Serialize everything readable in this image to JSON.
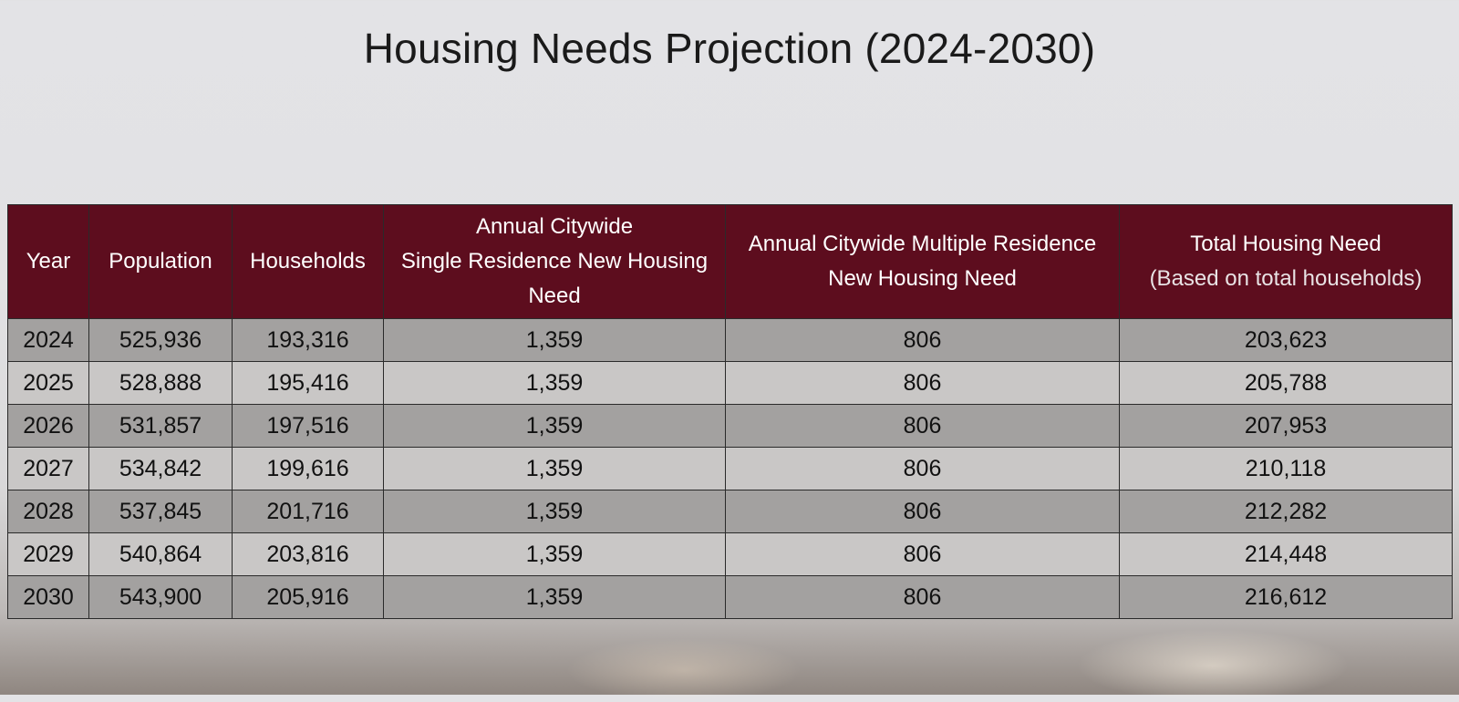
{
  "title": "Housing Needs Projection (2024-2030)",
  "table": {
    "headers": {
      "year": "Year",
      "population": "Population",
      "households": "Households",
      "single_line1": "Annual Citywide",
      "single_line2": "Single Residence New Housing",
      "single_line3": "Need",
      "multiple_line1": "Annual Citywide Multiple Residence",
      "multiple_line2": "New Housing Need",
      "total_line1": "Total Housing Need",
      "total_line2": "(Based on total households)"
    },
    "rows": [
      {
        "year": "2024",
        "population": "525,936",
        "households": "193,316",
        "single": "1,359",
        "multiple": "806",
        "total": "203,623"
      },
      {
        "year": "2025",
        "population": "528,888",
        "households": "195,416",
        "single": "1,359",
        "multiple": "806",
        "total": "205,788"
      },
      {
        "year": "2026",
        "population": "531,857",
        "households": "197,516",
        "single": "1,359",
        "multiple": "806",
        "total": "207,953"
      },
      {
        "year": "2027",
        "population": "534,842",
        "households": "199,616",
        "single": "1,359",
        "multiple": "806",
        "total": "210,118"
      },
      {
        "year": "2028",
        "population": "537,845",
        "households": "201,716",
        "single": "1,359",
        "multiple": "806",
        "total": "212,282"
      },
      {
        "year": "2029",
        "population": "540,864",
        "households": "203,816",
        "single": "1,359",
        "multiple": "806",
        "total": "214,448"
      },
      {
        "year": "2030",
        "population": "543,900",
        "households": "205,916",
        "single": "1,359",
        "multiple": "806",
        "total": "216,612"
      }
    ]
  },
  "colors": {
    "header_bg": "#5d0d1e",
    "row_dark": "#a3a1a0",
    "row_light": "#c9c7c6"
  }
}
